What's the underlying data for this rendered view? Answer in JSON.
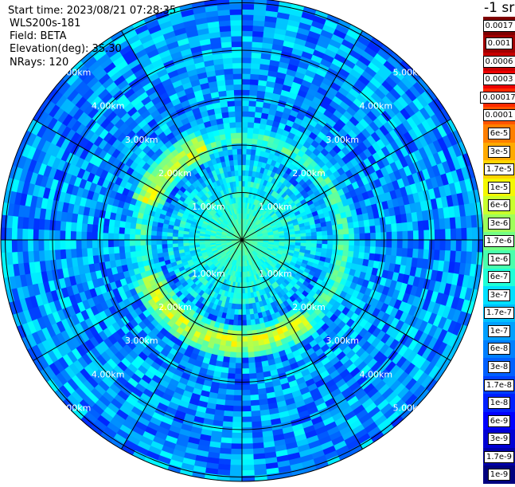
{
  "info": {
    "start_time": "Start time: 2023/08/21 07:28:35",
    "instrument": "WLS200s-181",
    "field": "Field: BETA",
    "elevation": "Elevation(deg): 35.30",
    "nrays": "NRays: 120"
  },
  "colorbar": {
    "title": "-1 sr",
    "labels": [
      "0.0017",
      "0.001",
      "0.0006",
      "0.0003",
      "0.00017",
      "0.0001",
      "6e-5",
      "3e-5",
      "1.7e-5",
      "1e-5",
      "6e-6",
      "3e-6",
      "1.7e-6",
      "1e-6",
      "6e-7",
      "3e-7",
      "1.7e-7",
      "1e-7",
      "6e-8",
      "3e-8",
      "1.7e-8",
      "1e-8",
      "6e-9",
      "3e-9",
      "1.7e-9",
      "1e-9"
    ],
    "colors": [
      "#7f0000",
      "#a00000",
      "#c80000",
      "#ee0000",
      "#ff2a00",
      "#ff5500",
      "#ff7f00",
      "#ffaa00",
      "#ffd400",
      "#f4f802",
      "#c9ff2d",
      "#9eff5a",
      "#74ff84",
      "#49ffad",
      "#1fffd8",
      "#00e0ff",
      "#00c0ff",
      "#00a0ff",
      "#0080ff",
      "#0060ff",
      "#0040ff",
      "#0020ff",
      "#0000ff",
      "#0000d4",
      "#0000a8",
      "#00007f"
    ]
  },
  "chart_data": {
    "type": "heatmap",
    "projection": "polar (PPI lidar scan)",
    "field": "BETA",
    "rays": 120,
    "range_rings_km": [
      1,
      2,
      3,
      4,
      5
    ],
    "ring_labels": [
      "1.00km",
      "2.00km",
      "3.00km",
      "4.00km",
      "5.00km"
    ],
    "spokes_deg": [
      0,
      30,
      60,
      90,
      120,
      150,
      180,
      210,
      240,
      270,
      300,
      330
    ],
    "colorscale": "jet, log10 scale, 1e-9 to 0.0017 sr^-1",
    "background_log10": -7.3,
    "near_field": {
      "r_km": [
        0,
        1.6
      ],
      "log10": -6.4
    },
    "aerosol_ring": {
      "r_km": 2.15,
      "log10": -5.2,
      "strong_sectors_deg": [
        [
          140,
          250
        ],
        [
          290,
          340
        ]
      ]
    }
  }
}
